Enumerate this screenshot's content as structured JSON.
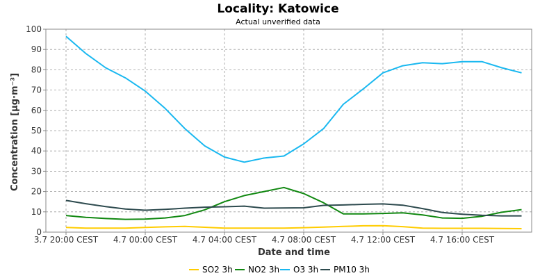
{
  "chart_data": {
    "type": "line",
    "title": "Locality: Katowice",
    "subtitle": "Actual unverified data",
    "xlabel": "Date and time",
    "ylabel": "Concentration [µg·m⁻³]",
    "ylim": [
      0,
      100
    ],
    "yticks": [
      "0",
      "10",
      "20",
      "30",
      "40",
      "50",
      "60",
      "70",
      "80",
      "90",
      "100"
    ],
    "xticks": [
      "3.7 20:00 CEST",
      "4.7 00:00 CEST",
      "4.7 04:00 CEST",
      "4.7 08:00 CEST",
      "4.7 12:00 CEST",
      "4.7 16:00 CEST"
    ],
    "grid": true,
    "legend_position": "bottom",
    "x_hours": [
      0,
      1,
      2,
      3,
      4,
      5,
      6,
      7,
      8,
      9,
      10,
      11,
      12,
      13,
      14,
      15,
      16,
      17,
      18,
      19,
      20,
      21,
      22,
      23
    ],
    "series": [
      {
        "name": "SO2 3h",
        "color": "#ffcc00",
        "values": [
          2.3,
          2.0,
          2.0,
          2.0,
          2.3,
          2.6,
          2.8,
          2.4,
          2.0,
          2.0,
          2.0,
          2.0,
          2.2,
          2.5,
          2.8,
          3.1,
          3.2,
          2.7,
          2.0,
          1.9,
          1.9,
          1.9,
          1.8,
          1.7
        ]
      },
      {
        "name": "NO2 3h",
        "color": "#118811",
        "values": [
          8.2,
          7.3,
          6.7,
          6.3,
          6.4,
          7.0,
          8.2,
          11.0,
          15.0,
          18.0,
          20.0,
          22.0,
          19.0,
          14.5,
          9.0,
          9.0,
          9.2,
          9.5,
          8.5,
          7.0,
          6.8,
          7.8,
          9.8,
          11.1
        ]
      },
      {
        "name": "O3 3h",
        "color": "#1ab8f0",
        "values": [
          96.5,
          88.0,
          81.0,
          76.0,
          69.5,
          61.0,
          51.0,
          42.5,
          37.0,
          34.5,
          36.5,
          37.5,
          43.5,
          51.0,
          63.0,
          70.5,
          78.5,
          82.0,
          83.5,
          83.0,
          84.0,
          84.0,
          81.0,
          78.5
        ]
      },
      {
        "name": "PM10 3h",
        "color": "#2d4a4e",
        "values": [
          15.6,
          14.0,
          12.6,
          11.4,
          10.8,
          11.2,
          11.8,
          12.3,
          12.5,
          12.8,
          11.8,
          11.9,
          12.0,
          13.2,
          13.4,
          13.7,
          13.9,
          13.3,
          11.6,
          9.7,
          8.8,
          8.3,
          8.0,
          8.0
        ]
      }
    ]
  }
}
